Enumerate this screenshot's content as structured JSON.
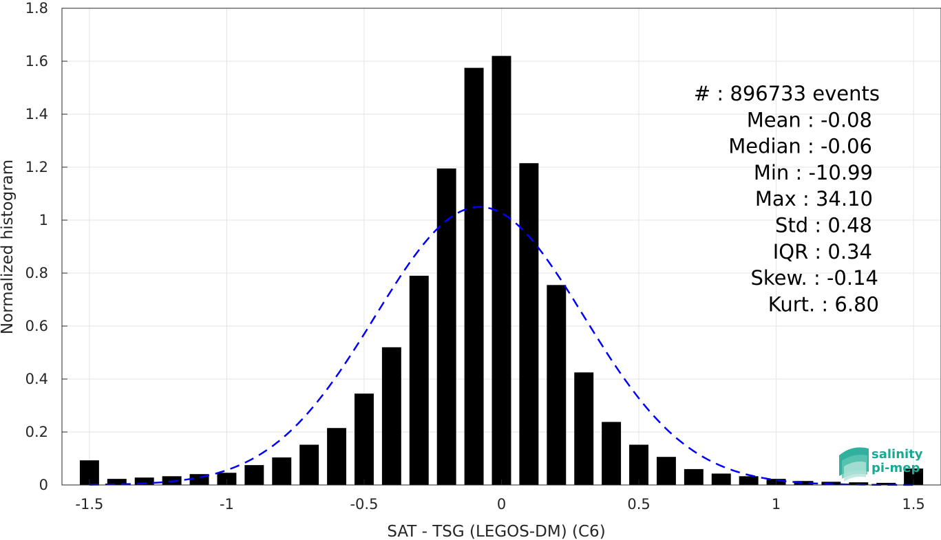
{
  "chart_data": {
    "type": "bar",
    "title": "",
    "xlabel": "SAT - TSG (LEGOS-DM) (C6)",
    "ylabel": "Normalized histogram",
    "xlim": [
      -1.6,
      1.6
    ],
    "ylim": [
      0,
      1.8
    ],
    "grid": true,
    "bin_width": 0.1,
    "x": [
      -1.5,
      -1.4,
      -1.3,
      -1.2,
      -1.1,
      -1.0,
      -0.9,
      -0.8,
      -0.7,
      -0.6,
      -0.5,
      -0.4,
      -0.3,
      -0.2,
      -0.1,
      0.0,
      0.1,
      0.2,
      0.3,
      0.4,
      0.5,
      0.6,
      0.7,
      0.8,
      0.9,
      1.0,
      1.1,
      1.2,
      1.3,
      1.4,
      1.5
    ],
    "values": [
      0.093,
      0.023,
      0.028,
      0.033,
      0.041,
      0.046,
      0.075,
      0.104,
      0.152,
      0.215,
      0.345,
      0.52,
      0.79,
      1.195,
      1.575,
      1.62,
      1.215,
      0.755,
      0.425,
      0.238,
      0.152,
      0.106,
      0.06,
      0.043,
      0.033,
      0.023,
      0.015,
      0.012,
      0.01,
      0.008,
      0.062
    ],
    "fit": {
      "type": "gaussian",
      "mean": -0.08,
      "std": 0.38,
      "style": "dashed",
      "color": "#0000ff"
    },
    "xticks": [
      -1.5,
      -1,
      -0.5,
      0,
      0.5,
      1,
      1.5
    ],
    "xtick_labels": [
      "-1.5",
      "-1",
      "-0.5",
      "0",
      "0.5",
      "1",
      "1.5"
    ],
    "yticks": [
      0,
      0.2,
      0.4,
      0.6,
      0.8,
      1,
      1.2,
      1.4,
      1.6,
      1.8
    ],
    "ytick_labels": [
      "0",
      "0.2",
      "0.4",
      "0.6",
      "0.8",
      "1",
      "1.2",
      "1.4",
      "1.6",
      "1.8"
    ],
    "bar_color": "#000000",
    "stats": [
      "#   : 896733 events",
      "Mean : -0.08",
      "Median : -0.06",
      "Min : -10.99",
      "Max : 34.10",
      "Std : 0.48",
      "IQR : 0.34",
      "Skew. : -0.14",
      "Kurt. : 6.80"
    ]
  },
  "logo": {
    "line1": "salinity",
    "line2": "pi-mep",
    "color": "#1aa893"
  }
}
